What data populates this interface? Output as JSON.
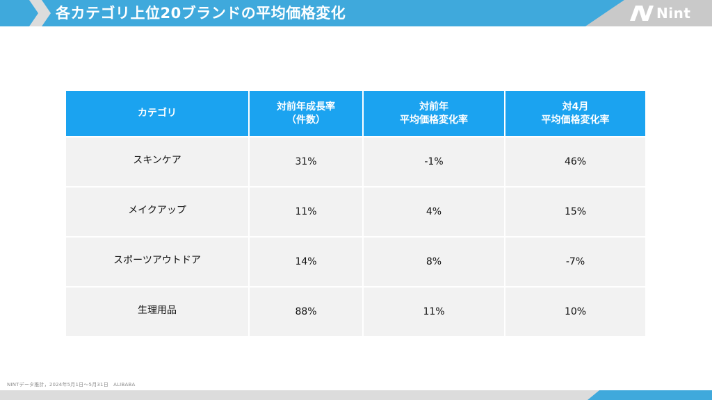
{
  "header": {
    "title": "各カテゴリ上位20ブランドの平均価格変化",
    "logo_text": "Nint",
    "colors": {
      "accent": "#3fa9dc",
      "light": "#dcdcdc"
    }
  },
  "table": {
    "headers": [
      [
        "カテゴリ"
      ],
      [
        "対前年成長率",
        "（件数）"
      ],
      [
        "対前年",
        "平均価格変化率"
      ],
      [
        "対4月",
        "平均価格変化率"
      ]
    ],
    "rows": [
      [
        "スキンケア",
        "31%",
        "-1%",
        "46%"
      ],
      [
        "メイクアップ",
        "11%",
        "4%",
        "15%"
      ],
      [
        "スポーツアウトドア",
        "14%",
        "8%",
        "-7%"
      ],
      [
        "生理用品",
        "88%",
        "11%",
        "10%"
      ]
    ],
    "colors": {
      "header_bg": "#1ba3f0",
      "row_bg": "#f2f2f2"
    }
  },
  "footer": {
    "source": "NINTデータ推計，2024年5月1日～5月31日　ALIBABA"
  }
}
